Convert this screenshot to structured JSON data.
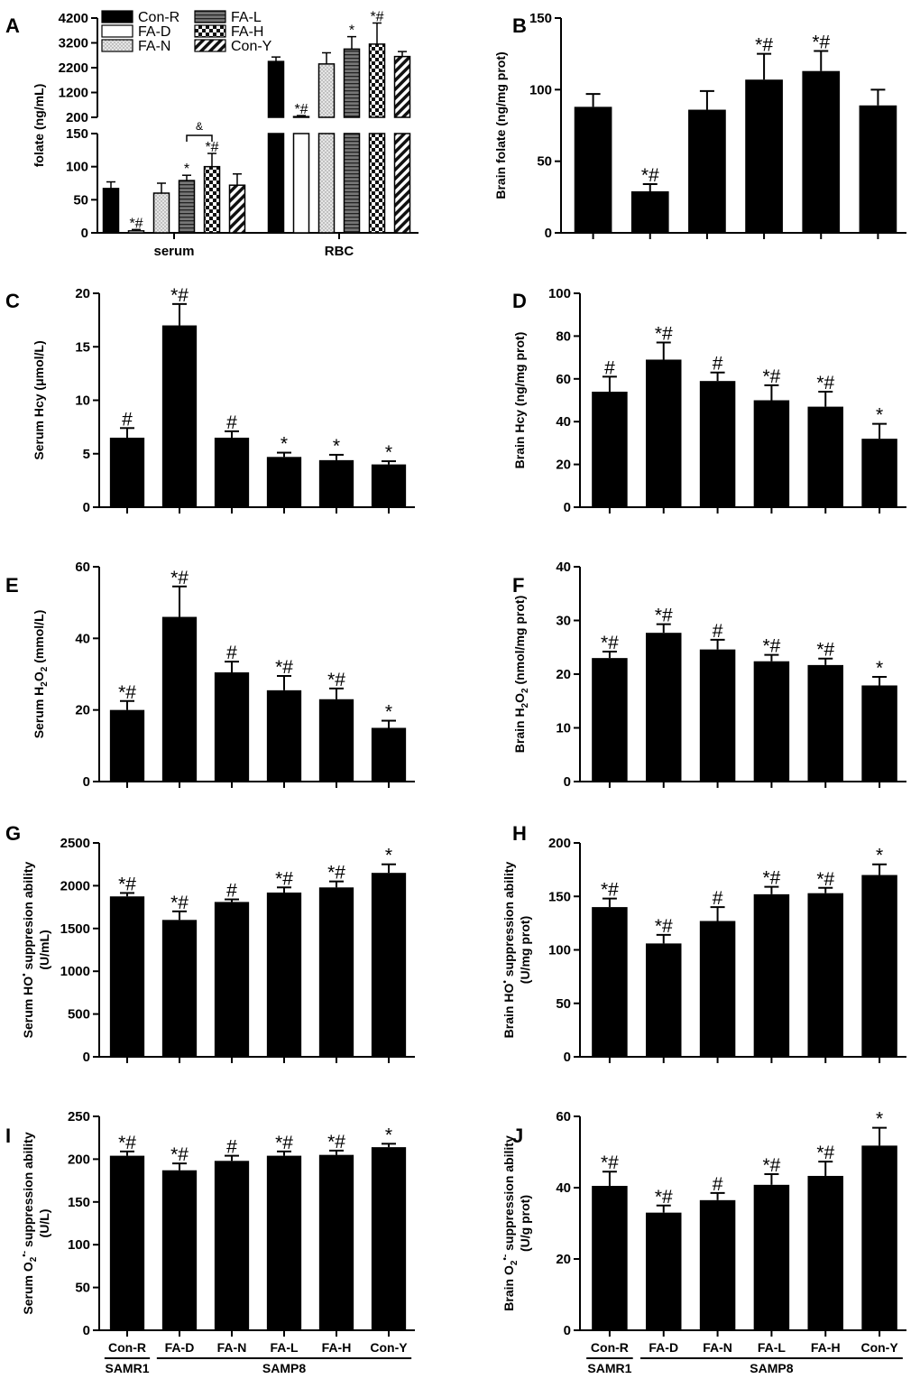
{
  "figure": {
    "group_left": "SAMR1",
    "group_right": "SAMP8"
  },
  "chart_data": [
    {
      "id": "A",
      "label": "A",
      "type": "bar",
      "ylabel": "folate (ng/mL)",
      "groups": [
        "serum",
        "RBC"
      ],
      "broken_axis": {
        "lower": {
          "ylim": [
            0,
            150
          ],
          "ticks": [
            "0",
            "50",
            "100",
            "150"
          ]
        },
        "upper": {
          "ylim": [
            200,
            4200
          ],
          "ticks": [
            "200",
            "1200",
            "2200",
            "3200",
            "4200"
          ]
        }
      },
      "series": [
        {
          "name": "Con-R",
          "pattern": "solid",
          "values": [
            67,
            2450
          ],
          "errors": [
            10,
            180
          ],
          "annotations": [
            "",
            ""
          ]
        },
        {
          "name": "FA-D",
          "pattern": "empty",
          "values": [
            3,
            230
          ],
          "errors": [
            2,
            40
          ],
          "annotations": [
            "*#",
            "*#"
          ]
        },
        {
          "name": "FA-N",
          "pattern": "dots",
          "values": [
            60,
            2350
          ],
          "errors": [
            15,
            450
          ],
          "annotations": [
            "",
            ""
          ]
        },
        {
          "name": "FA-L",
          "pattern": "hlines",
          "values": [
            79,
            2950
          ],
          "errors": [
            8,
            500
          ],
          "annotations": [
            "*",
            "*"
          ]
        },
        {
          "name": "FA-H",
          "pattern": "checker",
          "values": [
            100,
            3150
          ],
          "errors": [
            20,
            850
          ],
          "annotations": [
            "*#",
            "*#"
          ]
        },
        {
          "name": "Con-Y",
          "pattern": "diag",
          "values": [
            72,
            2650
          ],
          "errors": [
            17,
            200
          ],
          "annotations": [
            "",
            ""
          ]
        }
      ],
      "bracket": {
        "from": "FA-L",
        "to": "FA-H",
        "label": "&"
      }
    },
    {
      "id": "B",
      "label": "B",
      "type": "bar",
      "ylabel": "Brain folate (ng/mg prot)",
      "ylim": [
        0,
        150
      ],
      "ticks": [
        "0",
        "50",
        "100",
        "150"
      ],
      "categories": [
        "Con-R",
        "FA-D",
        "FA-N",
        "FA-L",
        "FA-H",
        "Con-Y"
      ],
      "values": [
        88,
        29,
        86,
        107,
        113,
        89
      ],
      "errors": [
        9,
        5,
        13,
        18,
        14,
        11
      ],
      "annotations": [
        "",
        "*#",
        "",
        "*#",
        "*#",
        ""
      ]
    },
    {
      "id": "C",
      "label": "C",
      "type": "bar",
      "ylabel": "Serum Hcy (μmol/L)",
      "ylim": [
        0,
        20
      ],
      "ticks": [
        "0",
        "5",
        "10",
        "15",
        "20"
      ],
      "categories": [
        "Con-R",
        "FA-D",
        "FA-N",
        "FA-L",
        "FA-H",
        "Con-Y"
      ],
      "values": [
        6.5,
        17,
        6.5,
        4.7,
        4.4,
        4.0
      ],
      "errors": [
        0.9,
        2.0,
        0.6,
        0.4,
        0.5,
        0.3
      ],
      "annotations": [
        "#",
        "*#",
        "#",
        "*",
        "*",
        "*"
      ]
    },
    {
      "id": "D",
      "label": "D",
      "type": "bar",
      "ylabel": "Brain Hcy (ng/mg prot)",
      "ylim": [
        0,
        100
      ],
      "ticks": [
        "0",
        "20",
        "40",
        "60",
        "80",
        "100"
      ],
      "categories": [
        "Con-R",
        "FA-D",
        "FA-N",
        "FA-L",
        "FA-H",
        "Con-Y"
      ],
      "values": [
        54,
        69,
        59,
        50,
        47,
        32
      ],
      "errors": [
        7,
        8,
        4,
        7,
        7,
        7
      ],
      "annotations": [
        "#",
        "*#",
        "#",
        "*#",
        "*#",
        "*"
      ]
    },
    {
      "id": "E",
      "label": "E",
      "type": "bar",
      "ylabel": {
        "pre": "Serum H",
        "sub1": "2",
        "mid": "O",
        "sub2": "2",
        "post": " (mmol/L)"
      },
      "ylim": [
        0,
        60
      ],
      "ticks": [
        "0",
        "20",
        "40",
        "60"
      ],
      "categories": [
        "Con-R",
        "FA-D",
        "FA-N",
        "FA-L",
        "FA-H",
        "Con-Y"
      ],
      "values": [
        20,
        46,
        30.5,
        25.5,
        23,
        15
      ],
      "errors": [
        2.5,
        8.5,
        3,
        4,
        3,
        2
      ],
      "annotations": [
        "*#",
        "*#",
        "#",
        "*#",
        "*#",
        "*"
      ]
    },
    {
      "id": "F",
      "label": "F",
      "type": "bar",
      "ylabel": {
        "pre": "Brain H",
        "sub1": "2",
        "mid": "O",
        "sub2": "2",
        "post": " (nmol/mg prot)"
      },
      "ylim": [
        0,
        40
      ],
      "ticks": [
        "0",
        "10",
        "20",
        "30",
        "40"
      ],
      "categories": [
        "Con-R",
        "FA-D",
        "FA-N",
        "FA-L",
        "FA-H",
        "Con-Y"
      ],
      "values": [
        23,
        27.7,
        24.6,
        22.4,
        21.7,
        17.9
      ],
      "errors": [
        1.2,
        1.6,
        1.8,
        1.2,
        1.2,
        1.6
      ],
      "annotations": [
        "*#",
        "*#",
        "#",
        "*#",
        "*#",
        "*"
      ]
    },
    {
      "id": "G",
      "label": "G",
      "type": "bar",
      "ylabel": {
        "line1pre": "Serum HO",
        "dot": "•",
        "line1post": " suppresion ability",
        "line2": "(U/mL)"
      },
      "ylim": [
        0,
        2500
      ],
      "ticks": [
        "0",
        "500",
        "1000",
        "1500",
        "2000",
        "2500"
      ],
      "categories": [
        "Con-R",
        "FA-D",
        "FA-N",
        "FA-L",
        "FA-H",
        "Con-Y"
      ],
      "values": [
        1875,
        1600,
        1810,
        1920,
        1980,
        2150
      ],
      "errors": [
        40,
        100,
        30,
        60,
        70,
        100
      ],
      "annotations": [
        "*#",
        "*#",
        "#",
        "*#",
        "*#",
        "*"
      ]
    },
    {
      "id": "H",
      "label": "H",
      "type": "bar",
      "ylabel": {
        "line1pre": "Brain HO",
        "dot": "•",
        "line1post": " suppression ability",
        "line2": "(U/mg prot)"
      },
      "ylim": [
        0,
        200
      ],
      "ticks": [
        "0",
        "50",
        "100",
        "150",
        "200"
      ],
      "categories": [
        "Con-R",
        "FA-D",
        "FA-N",
        "FA-L",
        "FA-H",
        "Con-Y"
      ],
      "values": [
        140,
        106,
        127,
        152,
        153,
        170
      ],
      "errors": [
        8,
        8,
        13,
        7,
        5,
        10
      ],
      "annotations": [
        "*#",
        "*#",
        "#",
        "*#",
        "*#",
        "*"
      ]
    },
    {
      "id": "I",
      "label": "I",
      "type": "bar",
      "ylabel": {
        "line1pre": "Serum O",
        "sub": "2",
        "sup": "•-",
        "line1post": " suppression ability",
        "line2": "(U/L)"
      },
      "ylim": [
        0,
        250
      ],
      "ticks": [
        "0",
        "50",
        "100",
        "150",
        "200",
        "250"
      ],
      "categories": [
        "Con-R",
        "FA-D",
        "FA-N",
        "FA-L",
        "FA-H",
        "Con-Y"
      ],
      "values": [
        204,
        187,
        198,
        204,
        205,
        214
      ],
      "errors": [
        5,
        8,
        6,
        5,
        5,
        4
      ],
      "annotations": [
        "*#",
        "*#",
        "#",
        "*#",
        "*#",
        "*"
      ]
    },
    {
      "id": "J",
      "label": "J",
      "type": "bar",
      "ylabel": {
        "line1pre": "Brain O",
        "sub": "2",
        "sup": "•-",
        "line1post": " suppression ability",
        "line2": "(U/g prot)"
      },
      "ylim": [
        0,
        60
      ],
      "ticks": [
        "0",
        "20",
        "40",
        "60"
      ],
      "categories": [
        "Con-R",
        "FA-D",
        "FA-N",
        "FA-L",
        "FA-H",
        "Con-Y"
      ],
      "values": [
        40.5,
        33,
        36.5,
        40.8,
        43.3,
        51.8
      ],
      "errors": [
        4,
        2,
        2,
        3,
        4,
        5
      ],
      "annotations": [
        "*#",
        "*#",
        "#",
        "*#",
        "*#",
        "*"
      ]
    }
  ]
}
